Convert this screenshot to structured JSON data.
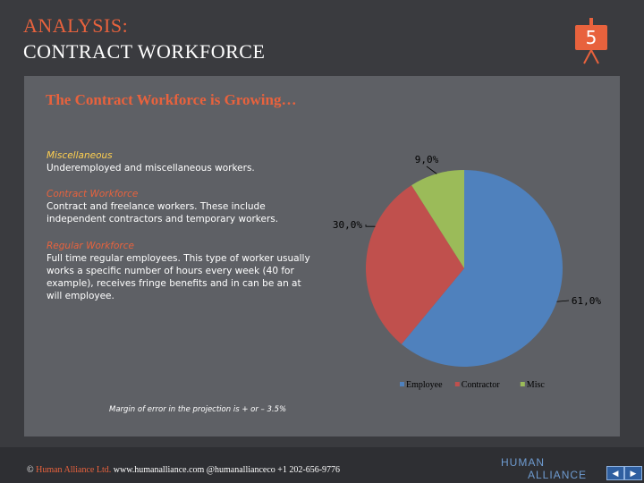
{
  "header": {
    "title_line1": "ANALYSIS:",
    "title_line2": "CONTRACT WORKFORCE",
    "slide_number": "5"
  },
  "panel": {
    "title": "The Contract Workforce is Growing…",
    "misc": {
      "heading": "Miscellaneous",
      "text": "Underemployed and miscellaneous workers."
    },
    "contract": {
      "heading": "Contract Workforce",
      "text": "Contract and freelance workers. These include independent contractors and temporary workers."
    },
    "regular": {
      "heading": "Regular Workforce",
      "text": "Full time regular employees. This type of worker usually works a specific number of hours every week (40 for example), receives fringe benefits and in can be an at will employee."
    },
    "note": "Margin of error in the projection is + or – 3.5%"
  },
  "chart_data": {
    "type": "pie",
    "title": "",
    "labels": [
      "Employee",
      "Contractor",
      "Misc"
    ],
    "values": [
      61.0,
      30.0,
      9.0
    ],
    "value_labels": [
      "61,0%",
      "30,0%",
      "9,0%"
    ],
    "colors": [
      "#4f81bd",
      "#c0504d",
      "#9bbb59"
    ],
    "legend_position": "bottom"
  },
  "footer": {
    "copyright_symbol": "©",
    "brand": "Human Alliance Ltd.",
    "contact": "www.humanalliance.com @humanallianceco +1 202-656-9776",
    "logo_line1": "HUMAN",
    "logo_line2": "ALLIANCE",
    "prev_icon": "◀",
    "next_icon": "▶"
  }
}
